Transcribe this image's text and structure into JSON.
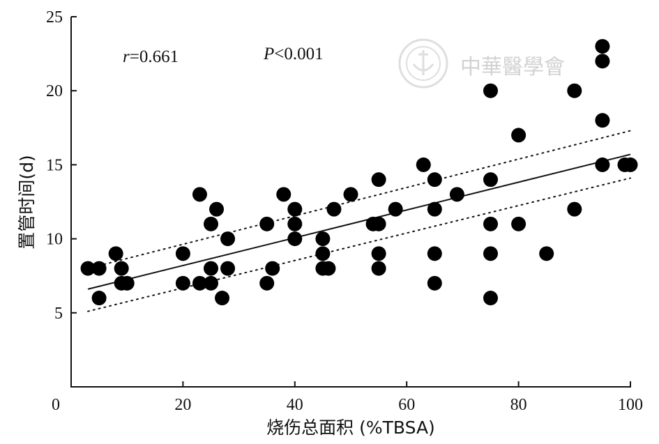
{
  "chart_data": {
    "type": "scatter",
    "xlabel": "烧伤总面积 (%TBSA)",
    "ylabel": "置管时间(d)",
    "xlim": [
      0,
      100
    ],
    "ylim": [
      0,
      25
    ],
    "x_ticks": [
      "0",
      "20",
      "40",
      "60",
      "80",
      "100"
    ],
    "y_ticks": [
      "5",
      "10",
      "15",
      "20",
      "25"
    ],
    "grid": false,
    "annotations": {
      "r_symbol": "r",
      "r_value": "=0.661",
      "p_symbol": "P",
      "p_value": "<0.001"
    },
    "points": [
      [
        3,
        8
      ],
      [
        5,
        8
      ],
      [
        5,
        6
      ],
      [
        8,
        9
      ],
      [
        9,
        8
      ],
      [
        9,
        7
      ],
      [
        10,
        7
      ],
      [
        20,
        9
      ],
      [
        20,
        7
      ],
      [
        23,
        13
      ],
      [
        23,
        7
      ],
      [
        25,
        11
      ],
      [
        25,
        8
      ],
      [
        25,
        7
      ],
      [
        26,
        12
      ],
      [
        27,
        6
      ],
      [
        28,
        10
      ],
      [
        28,
        8
      ],
      [
        35,
        11
      ],
      [
        35,
        7
      ],
      [
        36,
        8
      ],
      [
        38,
        13
      ],
      [
        40,
        12
      ],
      [
        40,
        11
      ],
      [
        40,
        10
      ],
      [
        45,
        10
      ],
      [
        45,
        9
      ],
      [
        45,
        8
      ],
      [
        46,
        8
      ],
      [
        47,
        12
      ],
      [
        50,
        13
      ],
      [
        54,
        11
      ],
      [
        55,
        14
      ],
      [
        55,
        11
      ],
      [
        55,
        9
      ],
      [
        55,
        8
      ],
      [
        58,
        12
      ],
      [
        63,
        15
      ],
      [
        65,
        14
      ],
      [
        65,
        12
      ],
      [
        65,
        9
      ],
      [
        65,
        7
      ],
      [
        69,
        13
      ],
      [
        75,
        20
      ],
      [
        75,
        14
      ],
      [
        75,
        11
      ],
      [
        75,
        9
      ],
      [
        75,
        6
      ],
      [
        80,
        17
      ],
      [
        80,
        11
      ],
      [
        85,
        9
      ],
      [
        90,
        20
      ],
      [
        90,
        12
      ],
      [
        95,
        23
      ],
      [
        95,
        22
      ],
      [
        95,
        18
      ],
      [
        95,
        15
      ],
      [
        99,
        15
      ],
      [
        100,
        15
      ]
    ],
    "regression": {
      "x": [
        3,
        100
      ],
      "y": [
        6.6,
        15.7
      ]
    },
    "ci_upper": {
      "x": [
        3,
        100
      ],
      "y": [
        8.0,
        17.3
      ]
    },
    "ci_lower": {
      "x": [
        3,
        100
      ],
      "y": [
        5.1,
        14.1
      ]
    }
  },
  "watermark": {
    "text": "中華醫學會",
    "icon": "society-seal-icon"
  }
}
